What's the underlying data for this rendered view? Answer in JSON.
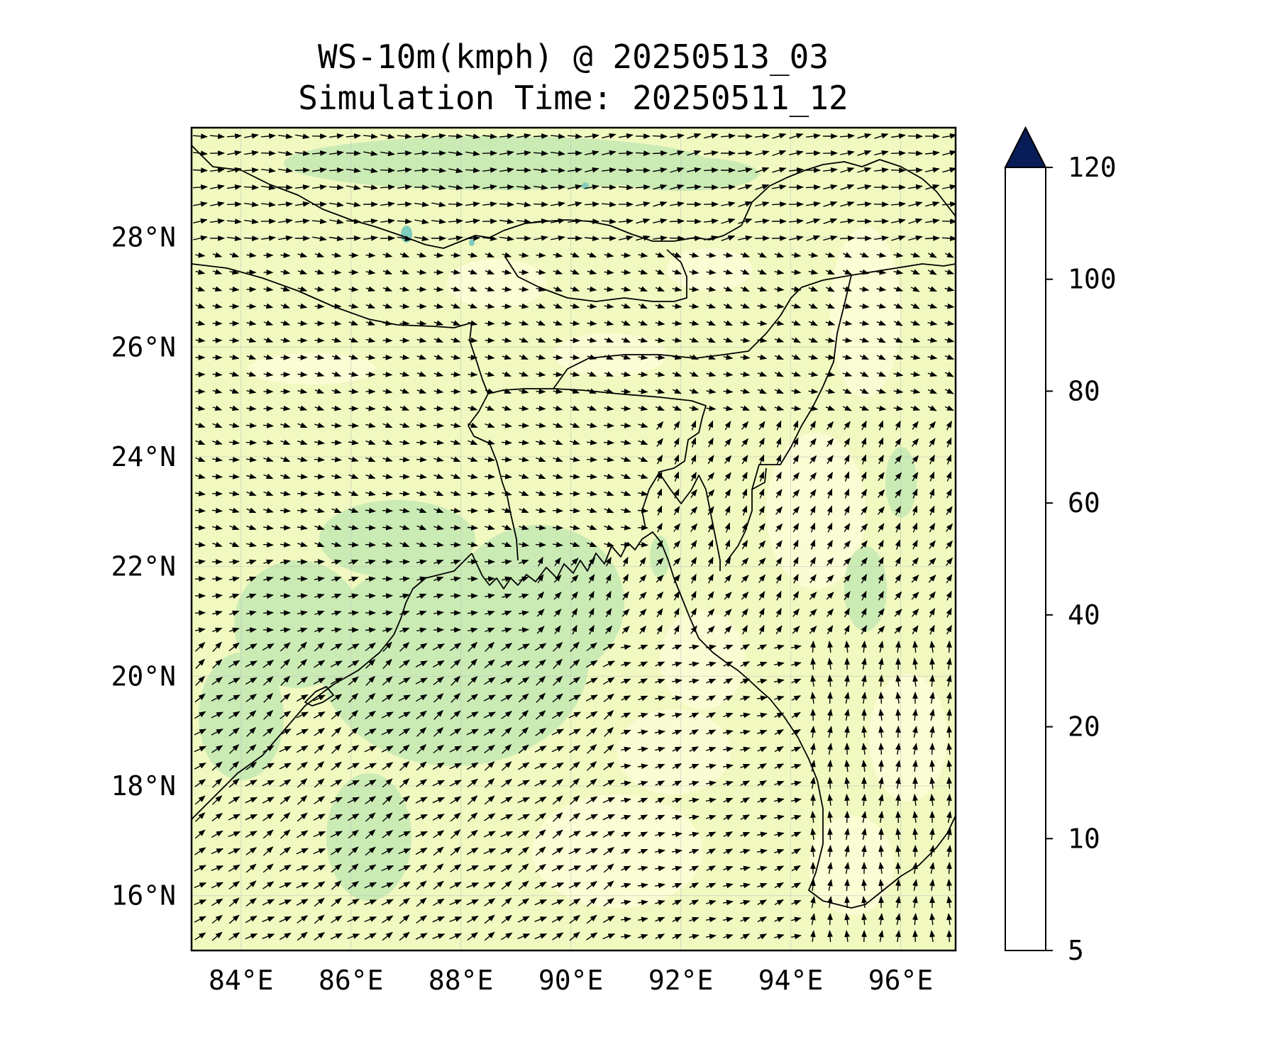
{
  "title": {
    "line1": "WS-10m(kmph) @ 20250513_03",
    "line2": "Simulation Time: 20250511_12"
  },
  "map": {
    "extent": {
      "lon_min": 83.1,
      "lon_max": 97.0,
      "lat_min": 15.0,
      "lat_max": 30.0
    },
    "lon_ticks": [
      84,
      86,
      88,
      90,
      92,
      94,
      96
    ],
    "lon_labels": [
      "84°E",
      "86°E",
      "88°E",
      "90°E",
      "92°E",
      "94°E",
      "96°E"
    ],
    "lat_ticks": [
      16,
      18,
      20,
      22,
      24,
      26,
      28
    ],
    "lat_labels": [
      "16°N",
      "18°N",
      "20°N",
      "22°N",
      "24°N",
      "26°N",
      "28°N"
    ],
    "gridlines": true,
    "field": "10 m wind speed (kmph) with wind vectors",
    "base_color": "#f1f9c0"
  },
  "colorbar": {
    "levels": [
      5,
      10,
      20,
      40,
      60,
      80,
      100,
      120
    ],
    "labels": [
      "5",
      "10",
      "20",
      "40",
      "60",
      "80",
      "100",
      "120"
    ],
    "colors": [
      "#ffffd9",
      "#edf8b1",
      "#c7e9b4",
      "#7fcdbb",
      "#41b6c4",
      "#225ea8",
      "#253494"
    ],
    "extend_color": "#081d58",
    "extend": "max"
  }
}
